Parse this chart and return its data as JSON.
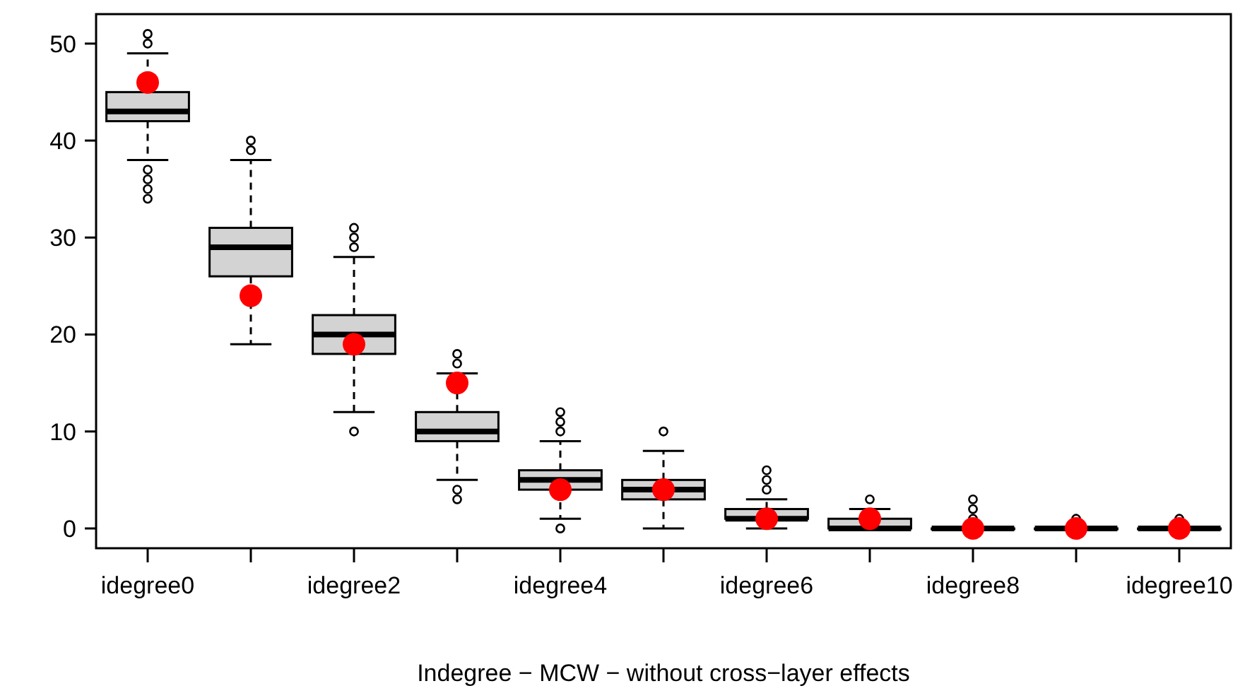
{
  "chart_data": {
    "type": "box",
    "xlabel": "Indegree − MCW − without cross−layer effects",
    "categories": [
      "idegree0",
      null,
      "idegree2",
      null,
      "idegree4",
      null,
      "idegree6",
      null,
      "idegree8",
      null,
      "idegree10"
    ],
    "ylim": [
      -2.04,
      53.04
    ],
    "yticks": [
      0,
      10,
      20,
      30,
      40,
      50
    ],
    "grid": false,
    "boxes": [
      {
        "low": 38,
        "q1": 42,
        "median": 43,
        "q3": 45,
        "high": 49,
        "outliers": [
          34,
          35,
          36,
          37,
          50,
          51
        ]
      },
      {
        "low": 19,
        "q1": 26,
        "median": 29,
        "q3": 31,
        "high": 38,
        "outliers": [
          39,
          40
        ]
      },
      {
        "low": 12,
        "q1": 18,
        "median": 20,
        "q3": 22,
        "high": 28,
        "outliers": [
          10,
          29,
          30,
          31
        ]
      },
      {
        "low": 5,
        "q1": 9,
        "median": 10,
        "q3": 12,
        "high": 16,
        "outliers": [
          3,
          4,
          17,
          18
        ]
      },
      {
        "low": 1,
        "q1": 4,
        "median": 5,
        "q3": 6,
        "high": 9,
        "outliers": [
          0,
          10,
          11,
          12
        ]
      },
      {
        "low": 0,
        "q1": 3,
        "median": 4,
        "q3": 5,
        "high": 8,
        "outliers": [
          10
        ]
      },
      {
        "low": 0,
        "q1": 1,
        "median": 1,
        "q3": 2,
        "high": 3,
        "outliers": [
          4,
          5,
          6
        ]
      },
      {
        "low": 0,
        "q1": 0,
        "median": 0,
        "q3": 1,
        "high": 2,
        "outliers": [
          3
        ]
      },
      {
        "low": 0,
        "q1": 0,
        "median": 0,
        "q3": 0,
        "high": 0,
        "outliers": [
          1,
          2,
          3
        ]
      },
      {
        "low": 0,
        "q1": 0,
        "median": 0,
        "q3": 0,
        "high": 0,
        "outliers": [
          1
        ]
      },
      {
        "low": 0,
        "q1": 0,
        "median": 0,
        "q3": 0,
        "high": 0,
        "outliers": [
          1
        ]
      }
    ],
    "series": [
      {
        "type": "scatter",
        "color": "#ff0000",
        "marker": "circle",
        "values": [
          46,
          24,
          19,
          15,
          4,
          4,
          1,
          1,
          0,
          0,
          0
        ]
      }
    ]
  }
}
